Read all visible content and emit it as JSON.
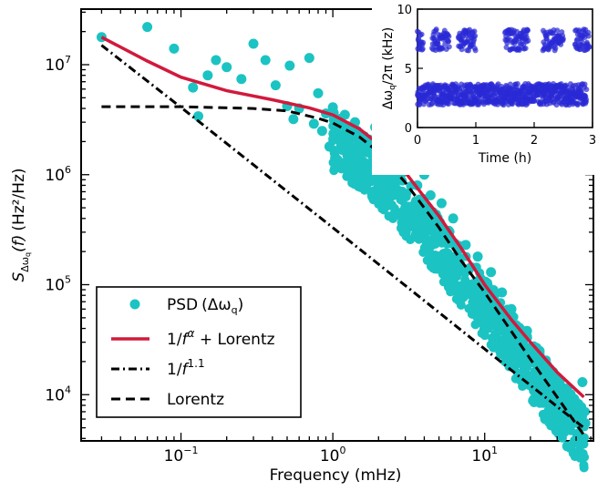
{
  "colors": {
    "psd": "#1cc3c3",
    "fit": "#d11a3c",
    "power_law": "#000000",
    "lorentz": "#000000",
    "inset_points": "#2a2ad6"
  },
  "chart_data": [
    {
      "type": "scatter",
      "xlabel": "Frequency (mHz)",
      "ylabel": "S_Δωq(f) (Hz²/Hz)",
      "x_scale": "log",
      "y_scale": "log",
      "xlim": [
        0.022,
        52
      ],
      "ylim": [
        3800,
        32000000
      ],
      "x_ticks": [
        {
          "value": 0.1,
          "base": "10",
          "exp": "−1"
        },
        {
          "value": 1,
          "base": "10",
          "exp": "0"
        },
        {
          "value": 10,
          "base": "10",
          "exp": "1"
        }
      ],
      "y_ticks": [
        {
          "value": 10000,
          "base": "10",
          "exp": "4"
        },
        {
          "value": 100000,
          "base": "10",
          "exp": "5"
        },
        {
          "value": 1000000,
          "base": "10",
          "exp": "6"
        },
        {
          "value": 10000000,
          "base": "10",
          "exp": "7"
        }
      ],
      "grid": false,
      "legend_position": "bottom-left",
      "series": [
        {
          "name": "PSD (Δωq)",
          "kind": "scatter",
          "color": "#1cc3c3",
          "points": [
            [
              0.03,
              17800000
            ],
            [
              0.06,
              22000000
            ],
            [
              0.09,
              14000000
            ],
            [
              0.12,
              6200000
            ],
            [
              0.13,
              3400000
            ],
            [
              0.15,
              8000000
            ],
            [
              0.17,
              11000000
            ],
            [
              0.2,
              9500000
            ],
            [
              0.25,
              7400000
            ],
            [
              0.3,
              15500000
            ],
            [
              0.36,
              11000000
            ],
            [
              0.42,
              6500000
            ],
            [
              0.5,
              4200000
            ],
            [
              0.52,
              9800000
            ],
            [
              0.55,
              3200000
            ],
            [
              0.6,
              4000000
            ],
            [
              0.7,
              11500000
            ],
            [
              0.75,
              2900000
            ],
            [
              0.8,
              5500000
            ],
            [
              0.85,
              2500000
            ],
            [
              0.9,
              3600000
            ],
            [
              0.95,
              1800000
            ],
            [
              1.0,
              4100000
            ],
            [
              1.1,
              2300000
            ],
            [
              1.2,
              3500000
            ],
            [
              1.3,
              1500000
            ],
            [
              1.4,
              3000000
            ],
            [
              1.5,
              2200000
            ],
            [
              1.7,
              1600000
            ],
            [
              1.9,
              2700000
            ],
            [
              2.0,
              1250000
            ],
            [
              2.2,
              3000000
            ],
            [
              2.4,
              900000
            ],
            [
              2.6,
              1800000
            ],
            [
              2.8,
              1100000
            ],
            [
              3.0,
              500000
            ],
            [
              3.3,
              1400000
            ],
            [
              3.6,
              800000
            ],
            [
              4.0,
              1000000
            ],
            [
              4.4,
              650000
            ],
            [
              4.8,
              300000
            ],
            [
              5.2,
              550000
            ],
            [
              5.7,
              260000
            ],
            [
              6.2,
              400000
            ],
            [
              6.8,
              150000
            ],
            [
              7.5,
              230000
            ],
            [
              8.2,
              100000
            ],
            [
              9.0,
              180000
            ],
            [
              10,
              60000
            ],
            [
              11,
              130000
            ],
            [
              12,
              42000
            ],
            [
              13,
              85000
            ],
            [
              14,
              28000
            ],
            [
              15,
              60000
            ],
            [
              17,
              20000
            ],
            [
              19,
              38000
            ],
            [
              21,
              9000
            ],
            [
              23,
              25000
            ],
            [
              25,
              6000
            ],
            [
              27,
              17000
            ],
            [
              30,
              5000
            ],
            [
              33,
              11000
            ],
            [
              36,
              9000
            ],
            [
              40,
              6500
            ],
            [
              44,
              13000
            ],
            [
              46,
              5500
            ]
          ]
        },
        {
          "name": "1/f^α + Lorentz",
          "kind": "line",
          "color": "#d11a3c",
          "style": "solid",
          "points": [
            [
              0.03,
              17800000
            ],
            [
              0.06,
              10800000
            ],
            [
              0.1,
              7700000
            ],
            [
              0.2,
              5800000
            ],
            [
              0.4,
              4800000
            ],
            [
              0.7,
              4050000
            ],
            [
              1.0,
              3500000
            ],
            [
              1.5,
              2600000
            ],
            [
              2.0,
              1900000
            ],
            [
              3.0,
              1050000
            ],
            [
              5.0,
              420000
            ],
            [
              7.0,
              215000
            ],
            [
              10,
              100000
            ],
            [
              15,
              48000
            ],
            [
              20,
              30000
            ],
            [
              30,
              16000
            ],
            [
              45,
              9500
            ]
          ]
        },
        {
          "name": "1/f^{1.1}",
          "kind": "line",
          "color": "#000000",
          "style": "dashdot",
          "points": [
            [
              0.03,
              15000000
            ],
            [
              0.1,
              4100000
            ],
            [
              1.0,
              330000
            ],
            [
              10,
              26000
            ],
            [
              45,
              5000
            ]
          ]
        },
        {
          "name": "Lorentz",
          "kind": "line",
          "color": "#000000",
          "style": "dashed",
          "points": [
            [
              0.03,
              4150000
            ],
            [
              0.1,
              4150000
            ],
            [
              0.3,
              4000000
            ],
            [
              0.5,
              3800000
            ],
            [
              0.8,
              3250000
            ],
            [
              1.0,
              2950000
            ],
            [
              1.5,
              2200000
            ],
            [
              2.0,
              1600000
            ],
            [
              3.0,
              850000
            ],
            [
              5.0,
              330000
            ],
            [
              7.0,
              165000
            ],
            [
              10,
              85000
            ],
            [
              20,
              21000
            ],
            [
              30,
              9500
            ],
            [
              45,
              4300
            ]
          ]
        }
      ]
    },
    {
      "type": "scatter",
      "xlabel": "Time (h)",
      "ylabel": "Δωq/2π (kHz)",
      "xlim": [
        0,
        3
      ],
      "ylim": [
        0,
        10
      ],
      "x_ticks": [
        "0",
        "1",
        "2",
        "3"
      ],
      "y_ticks": [
        "0",
        "5",
        "10"
      ],
      "grid": false,
      "series": [
        {
          "color": "#2a2ad6",
          "low_state_kHz": 2.8,
          "high_state_kHz": 7.4,
          "high_state_intervals_h": [
            [
              0.0,
              0.1
            ],
            [
              0.25,
              0.55
            ],
            [
              0.7,
              1.0
            ],
            [
              1.5,
              1.9
            ],
            [
              2.15,
              2.5
            ],
            [
              2.7,
              2.95
            ]
          ],
          "time_range_h": [
            0,
            2.9
          ]
        }
      ]
    }
  ],
  "legend": {
    "psd": {
      "main": "PSD",
      "paren_open": "(Δω",
      "sub": "q",
      "paren_close": ")"
    },
    "fit": {
      "prefix": "1/",
      "f": "f",
      "sup": "α",
      "suffix": " + Lorentz"
    },
    "power": {
      "prefix": "1/",
      "f": "f",
      "sup": "1.1"
    },
    "lorentz": {
      "label": "Lorentz"
    }
  },
  "main_axes": {
    "xlabel": "Frequency (mHz)",
    "ylabel": {
      "s": "S",
      "sub1": "Δω",
      "sub2": "q",
      "paren": "(f)",
      "units": "(Hz²/Hz)"
    }
  },
  "inset_axes": {
    "xlabel": "Time (h)",
    "ylabel": {
      "pre": "Δω",
      "sub": "q",
      "post": "/2π (kHz)"
    }
  }
}
